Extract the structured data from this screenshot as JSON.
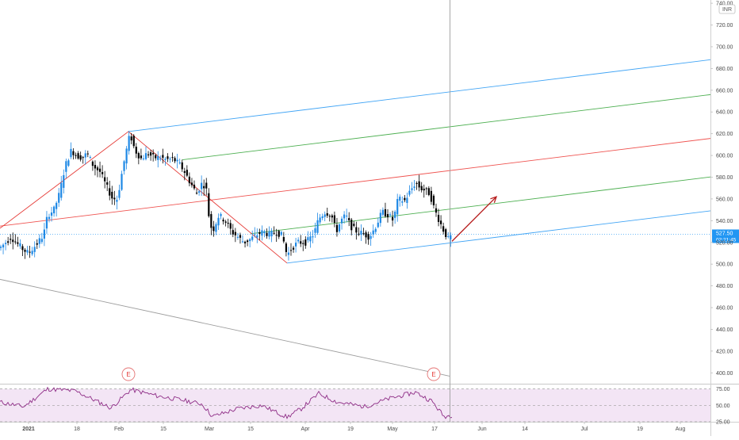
{
  "chart_data": {
    "type": "candlestick",
    "currency": "INR",
    "price": {
      "ylim": [
        390,
        743
      ],
      "yticks": [
        "400.00",
        "420.00",
        "440.00",
        "460.00",
        "480.00",
        "500.00",
        "520.00",
        "540.00",
        "560.00",
        "580.00",
        "600.00",
        "620.00",
        "640.00",
        "660.00",
        "680.00",
        "700.00",
        "720.00",
        "740.00"
      ],
      "last_price": "527.50",
      "countdown": "02:21:45",
      "waypoints": [
        {
          "x": 0,
          "y": 515
        },
        {
          "x": 14,
          "y": 525
        },
        {
          "x": 20,
          "y": 520
        },
        {
          "x": 30,
          "y": 513
        },
        {
          "x": 36,
          "y": 510
        },
        {
          "x": 42,
          "y": 515
        },
        {
          "x": 48,
          "y": 520
        },
        {
          "x": 55,
          "y": 527
        },
        {
          "x": 60,
          "y": 545
        },
        {
          "x": 68,
          "y": 550
        },
        {
          "x": 75,
          "y": 565
        },
        {
          "x": 82,
          "y": 590
        },
        {
          "x": 90,
          "y": 605
        },
        {
          "x": 96,
          "y": 600
        },
        {
          "x": 104,
          "y": 598
        },
        {
          "x": 110,
          "y": 602
        },
        {
          "x": 118,
          "y": 590
        },
        {
          "x": 126,
          "y": 585
        },
        {
          "x": 134,
          "y": 572
        },
        {
          "x": 142,
          "y": 560
        },
        {
          "x": 148,
          "y": 560
        },
        {
          "x": 154,
          "y": 585
        },
        {
          "x": 158,
          "y": 600
        },
        {
          "x": 164,
          "y": 620
        },
        {
          "x": 170,
          "y": 605
        },
        {
          "x": 178,
          "y": 597
        },
        {
          "x": 186,
          "y": 602
        },
        {
          "x": 194,
          "y": 598
        },
        {
          "x": 202,
          "y": 598
        },
        {
          "x": 210,
          "y": 596
        },
        {
          "x": 218,
          "y": 597
        },
        {
          "x": 226,
          "y": 592
        },
        {
          "x": 232,
          "y": 586
        },
        {
          "x": 240,
          "y": 575
        },
        {
          "x": 248,
          "y": 565
        },
        {
          "x": 255,
          "y": 575
        },
        {
          "x": 260,
          "y": 570
        },
        {
          "x": 264,
          "y": 540
        },
        {
          "x": 268,
          "y": 530
        },
        {
          "x": 276,
          "y": 545
        },
        {
          "x": 284,
          "y": 540
        },
        {
          "x": 292,
          "y": 530
        },
        {
          "x": 300,
          "y": 525
        },
        {
          "x": 308,
          "y": 520
        },
        {
          "x": 316,
          "y": 523
        },
        {
          "x": 324,
          "y": 527
        },
        {
          "x": 332,
          "y": 530
        },
        {
          "x": 340,
          "y": 527
        },
        {
          "x": 348,
          "y": 530
        },
        {
          "x": 356,
          "y": 526
        },
        {
          "x": 362,
          "y": 508
        },
        {
          "x": 368,
          "y": 515
        },
        {
          "x": 376,
          "y": 520
        },
        {
          "x": 386,
          "y": 520
        },
        {
          "x": 396,
          "y": 528
        },
        {
          "x": 402,
          "y": 542
        },
        {
          "x": 410,
          "y": 548
        },
        {
          "x": 418,
          "y": 545
        },
        {
          "x": 424,
          "y": 530
        },
        {
          "x": 430,
          "y": 540
        },
        {
          "x": 436,
          "y": 545
        },
        {
          "x": 442,
          "y": 535
        },
        {
          "x": 450,
          "y": 530
        },
        {
          "x": 458,
          "y": 528
        },
        {
          "x": 466,
          "y": 525
        },
        {
          "x": 474,
          "y": 535
        },
        {
          "x": 482,
          "y": 548
        },
        {
          "x": 490,
          "y": 545
        },
        {
          "x": 496,
          "y": 540
        },
        {
          "x": 502,
          "y": 560
        },
        {
          "x": 510,
          "y": 558
        },
        {
          "x": 518,
          "y": 568
        },
        {
          "x": 524,
          "y": 575
        },
        {
          "x": 530,
          "y": 570
        },
        {
          "x": 536,
          "y": 568
        },
        {
          "x": 542,
          "y": 565
        },
        {
          "x": 548,
          "y": 550
        },
        {
          "x": 554,
          "y": 540
        },
        {
          "x": 560,
          "y": 530
        },
        {
          "x": 566,
          "y": 522
        },
        {
          "x": 570,
          "y": 527.5
        }
      ],
      "channel_color_outer": "#42a5f5",
      "channel_color_mid": "#4caf50",
      "channel_color_median": "#ef5350",
      "pitchfork_color": "#e53935",
      "gray_line_color": "#9e9e9e",
      "arrow_color": "#b71c1c",
      "up_color": "#1e88e5",
      "down_color": "#000000"
    },
    "events": [
      {
        "label": "E",
        "x": 162
      },
      {
        "label": "E",
        "x": 547
      }
    ],
    "rsi": {
      "ylim": [
        25,
        83
      ],
      "levels": [
        75,
        50,
        25
      ],
      "yticks": [
        "75.00",
        "50.00",
        "25.00"
      ],
      "band_color": "#f3e5f5",
      "line_color": "#8e2c86",
      "waypoints": [
        {
          "x": 0,
          "y": 55
        },
        {
          "x": 30,
          "y": 48
        },
        {
          "x": 60,
          "y": 75
        },
        {
          "x": 95,
          "y": 72
        },
        {
          "x": 140,
          "y": 46
        },
        {
          "x": 165,
          "y": 74
        },
        {
          "x": 200,
          "y": 64
        },
        {
          "x": 230,
          "y": 58
        },
        {
          "x": 255,
          "y": 52
        },
        {
          "x": 268,
          "y": 33
        },
        {
          "x": 300,
          "y": 45
        },
        {
          "x": 330,
          "y": 50
        },
        {
          "x": 362,
          "y": 32
        },
        {
          "x": 380,
          "y": 45
        },
        {
          "x": 402,
          "y": 68
        },
        {
          "x": 425,
          "y": 55
        },
        {
          "x": 460,
          "y": 48
        },
        {
          "x": 490,
          "y": 60
        },
        {
          "x": 524,
          "y": 70
        },
        {
          "x": 545,
          "y": 56
        },
        {
          "x": 560,
          "y": 33
        },
        {
          "x": 570,
          "y": 35
        }
      ]
    },
    "xticks": [
      {
        "label": "2021",
        "x": 36
      },
      {
        "label": "18",
        "x": 97
      },
      {
        "label": "Feb",
        "x": 150
      },
      {
        "label": "15",
        "x": 206
      },
      {
        "label": "Mar",
        "x": 264
      },
      {
        "label": "15",
        "x": 316
      },
      {
        "label": "Apr",
        "x": 385
      },
      {
        "label": "19",
        "x": 442
      },
      {
        "label": "May",
        "x": 495
      },
      {
        "label": "17",
        "x": 548
      },
      {
        "label": "Jun",
        "x": 608
      },
      {
        "label": "14",
        "x": 662
      },
      {
        "label": "Jul",
        "x": 737
      },
      {
        "label": "19",
        "x": 807
      },
      {
        "label": "Aug",
        "x": 858
      }
    ]
  }
}
